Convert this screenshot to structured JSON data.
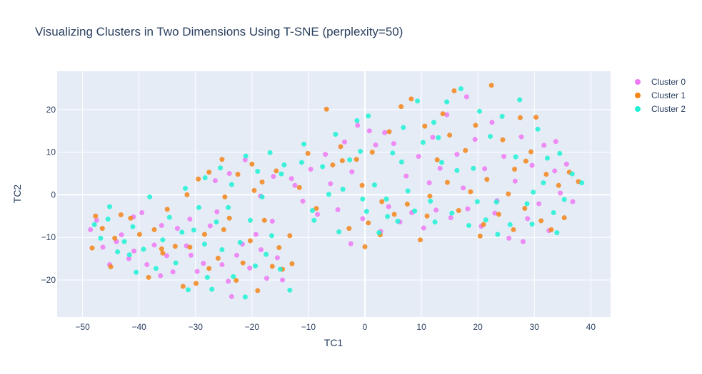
{
  "chart_data": {
    "type": "scatter",
    "title": "Visualizing Clusters in Two Dimensions Using T-SNE (perplexity=50)",
    "xlabel": "TC1",
    "ylabel": "TC2",
    "xlim": [
      -54.5,
      43.5
    ],
    "ylim": [
      -28.7,
      29.0
    ],
    "x_ticks": [
      -50,
      -40,
      -30,
      -20,
      -10,
      0,
      10,
      20,
      30,
      40
    ],
    "x_tick_labels": [
      "−50",
      "−40",
      "−30",
      "−20",
      "−10",
      "0",
      "10",
      "20",
      "30",
      "40"
    ],
    "y_ticks": [
      -20,
      -10,
      0,
      10,
      20
    ],
    "y_tick_labels": [
      "−20",
      "−10",
      "0",
      "10",
      "20"
    ],
    "grid": true,
    "legend_position": "top-right",
    "plot_background": "#e5ecf6",
    "series": [
      {
        "name": "Cluster 0",
        "color": "#ef79f2",
        "points": [
          [
            -48.6,
            -8.2
          ],
          [
            -47.5,
            -6.0
          ],
          [
            -46.4,
            -12.3
          ],
          [
            -45.2,
            -16.4
          ],
          [
            -44.0,
            -11.0
          ],
          [
            -43.1,
            -9.4
          ],
          [
            -41.8,
            -15.0
          ],
          [
            -40.9,
            -13.2
          ],
          [
            -39.5,
            -4.2
          ],
          [
            -38.6,
            -16.4
          ],
          [
            -37.3,
            -11.8
          ],
          [
            -36.0,
            -7.2
          ],
          [
            -35.1,
            -14.3
          ],
          [
            -34.0,
            -18.1
          ],
          [
            -33.2,
            -7.9
          ],
          [
            -31.6,
            -12.0
          ],
          [
            -30.8,
            -14.2
          ],
          [
            -29.7,
            -18.0
          ],
          [
            -28.6,
            -16.1
          ],
          [
            -27.4,
            -7.3
          ],
          [
            -26.2,
            -4.0
          ],
          [
            -25.3,
            -16.4
          ],
          [
            -24.2,
            -20.3
          ],
          [
            -23.6,
            -23.9
          ],
          [
            -22.7,
            -14.2
          ],
          [
            -21.7,
            -11.6
          ],
          [
            -20.4,
            -17.2
          ],
          [
            -19.3,
            -9.3
          ],
          [
            -18.4,
            -12.9
          ],
          [
            -17.4,
            -19.6
          ],
          [
            -16.4,
            -6.2
          ],
          [
            -15.5,
            -14.8
          ],
          [
            -14.6,
            -20.0
          ],
          [
            -26.5,
            3.3
          ],
          [
            -24.0,
            5.0
          ],
          [
            -21.2,
            8.2
          ],
          [
            -18.5,
            -0.3
          ],
          [
            -16.2,
            4.3
          ],
          [
            -12.4,
            2.2
          ],
          [
            -11.0,
            -1.5
          ],
          [
            -9.6,
            6.0
          ],
          [
            -8.4,
            -4.6
          ],
          [
            -7.0,
            9.5
          ],
          [
            -6.1,
            2.6
          ],
          [
            -4.8,
            -3.5
          ],
          [
            -3.6,
            12.4
          ],
          [
            -2.3,
            5.4
          ],
          [
            -1.3,
            16.3
          ],
          [
            -0.4,
            -5.6
          ],
          [
            0.8,
            15.0
          ],
          [
            1.9,
            11.7
          ],
          [
            2.8,
            -8.6
          ],
          [
            4.2,
            -2.8
          ],
          [
            5.1,
            12.0
          ],
          [
            6.2,
            -6.4
          ],
          [
            7.3,
            4.4
          ],
          [
            8.3,
            -4.2
          ],
          [
            9.5,
            9.0
          ],
          [
            10.4,
            -7.8
          ],
          [
            11.4,
            2.8
          ],
          [
            12.6,
            -3.6
          ],
          [
            13.3,
            6.2
          ],
          [
            14.5,
            18.8
          ],
          [
            15.2,
            -5.4
          ],
          [
            16.3,
            9.5
          ],
          [
            17.4,
            1.6
          ],
          [
            18.2,
            -3.3
          ],
          [
            19.5,
            13.0
          ],
          [
            20.6,
            -7.4
          ],
          [
            21.2,
            6.1
          ],
          [
            22.5,
            17.0
          ],
          [
            23.4,
            -1.4
          ],
          [
            24.6,
            9.0
          ],
          [
            25.5,
            -10.2
          ],
          [
            26.6,
            3.2
          ],
          [
            27.7,
            13.6
          ],
          [
            28.8,
            -5.6
          ],
          [
            29.6,
            6.9
          ],
          [
            30.8,
            -2.1
          ],
          [
            31.7,
            11.6
          ],
          [
            32.6,
            -8.4
          ],
          [
            33.6,
            5.6
          ],
          [
            34.6,
            0.4
          ],
          [
            35.7,
            7.2
          ],
          [
            36.8,
            -1.6
          ],
          [
            -2.5,
            -11.5
          ],
          [
            23.0,
            -4.3
          ],
          [
            28.0,
            -11.0
          ],
          [
            -36.2,
            -19.0
          ],
          [
            -41.0,
            -5.2
          ],
          [
            -31.0,
            -5.7
          ],
          [
            -13.0,
            3.8
          ],
          [
            3.5,
            14.6
          ],
          [
            12.0,
            13.5
          ],
          [
            18.0,
            23.0
          ],
          [
            33.8,
            12.5
          ]
        ]
      },
      {
        "name": "Cluster 1",
        "color": "#f58518",
        "points": [
          [
            -48.3,
            -12.5
          ],
          [
            -47.7,
            -5.0
          ],
          [
            -46.5,
            -7.9
          ],
          [
            -45.0,
            -16.9
          ],
          [
            -43.2,
            -4.7
          ],
          [
            -41.5,
            -5.5
          ],
          [
            -39.9,
            -9.3
          ],
          [
            -38.3,
            -19.4
          ],
          [
            -37.3,
            -8.2
          ],
          [
            -35.8,
            -13.7
          ],
          [
            -33.6,
            -12.1
          ],
          [
            -32.2,
            -21.5
          ],
          [
            -31.0,
            -12.3
          ],
          [
            -29.9,
            -20.8
          ],
          [
            -28.4,
            -9.3
          ],
          [
            -27.6,
            -17.3
          ],
          [
            -26.0,
            -14.9
          ],
          [
            -25.0,
            -8.2
          ],
          [
            -24.0,
            -5.5
          ],
          [
            -22.8,
            -20.1
          ],
          [
            -21.6,
            -16.0
          ],
          [
            -20.3,
            -10.8
          ],
          [
            -19.0,
            -22.5
          ],
          [
            -17.8,
            -6.0
          ],
          [
            -16.4,
            -16.8
          ],
          [
            -15.2,
            -12.4
          ],
          [
            -14.6,
            -17.5
          ],
          [
            -13.3,
            -9.6
          ],
          [
            -31.5,
            0.0
          ],
          [
            -29.5,
            3.7
          ],
          [
            -27.6,
            5.3
          ],
          [
            -25.3,
            8.3
          ],
          [
            -24.8,
            -0.5
          ],
          [
            -22.5,
            4.8
          ],
          [
            -20.0,
            7.2
          ],
          [
            -18.2,
            3.0
          ],
          [
            -15.7,
            5.6
          ],
          [
            -11.6,
            1.7
          ],
          [
            -10.1,
            9.7
          ],
          [
            -8.6,
            -3.2
          ],
          [
            -6.8,
            20.1
          ],
          [
            -5.7,
            7.0
          ],
          [
            -4.3,
            11.3
          ],
          [
            -2.8,
            -7.9
          ],
          [
            -1.5,
            8.3
          ],
          [
            -0.5,
            2.2
          ],
          [
            0.6,
            -6.6
          ],
          [
            1.3,
            10.0
          ],
          [
            2.7,
            -9.4
          ],
          [
            4.3,
            14.8
          ],
          [
            5.2,
            -4.6
          ],
          [
            6.4,
            20.7
          ],
          [
            7.5,
            -2.2
          ],
          [
            8.2,
            22.5
          ],
          [
            9.8,
            -10.6
          ],
          [
            10.6,
            16.1
          ],
          [
            11.5,
            -0.3
          ],
          [
            12.8,
            8.2
          ],
          [
            13.8,
            19.0
          ],
          [
            14.6,
            2.9
          ],
          [
            15.8,
            24.4
          ],
          [
            16.6,
            -3.7
          ],
          [
            17.8,
            10.4
          ],
          [
            18.7,
            0.7
          ],
          [
            19.6,
            16.3
          ],
          [
            20.4,
            -9.7
          ],
          [
            21.6,
            3.6
          ],
          [
            22.4,
            25.7
          ],
          [
            23.7,
            -4.6
          ],
          [
            24.4,
            12.9
          ],
          [
            25.4,
            0.2
          ],
          [
            26.3,
            -8.2
          ],
          [
            27.5,
            18.1
          ],
          [
            28.3,
            -3.2
          ],
          [
            29.4,
            10.1
          ],
          [
            30.3,
            18.2
          ],
          [
            31.2,
            -6.1
          ],
          [
            32.1,
            4.8
          ],
          [
            33.0,
            -8.2
          ],
          [
            34.3,
            2.2
          ],
          [
            35.3,
            -5.4
          ],
          [
            36.2,
            5.3
          ],
          [
            37.8,
            3.1
          ],
          [
            -35.0,
            -3.4
          ],
          [
            -19.6,
            1.0
          ],
          [
            3.0,
            -1.6
          ],
          [
            21.0,
            -7.0
          ],
          [
            26.5,
            6.0
          ],
          [
            -44.3,
            -10.2
          ],
          [
            -12.9,
            -16.2
          ],
          [
            0.0,
            -12.2
          ],
          [
            11.0,
            -5.0
          ],
          [
            28.5,
            7.9
          ],
          [
            -36.0,
            -12.7
          ],
          [
            -4.0,
            8.0
          ],
          [
            15.0,
            14.0
          ]
        ]
      },
      {
        "name": "Cluster 2",
        "color": "#1ff2d3",
        "points": [
          [
            -47.9,
            -7.0
          ],
          [
            -46.8,
            -10.2
          ],
          [
            -45.2,
            -2.8
          ],
          [
            -43.8,
            -13.4
          ],
          [
            -42.6,
            -11.0
          ],
          [
            -41.1,
            -7.5
          ],
          [
            -40.5,
            -18.2
          ],
          [
            -39.2,
            -12.8
          ],
          [
            -38.1,
            -0.5
          ],
          [
            -37.0,
            -17.3
          ],
          [
            -35.8,
            -10.6
          ],
          [
            -34.6,
            -5.3
          ],
          [
            -33.5,
            -16.0
          ],
          [
            -32.4,
            -8.8
          ],
          [
            -31.3,
            -22.3
          ],
          [
            -30.3,
            -8.3
          ],
          [
            -29.4,
            -3.0
          ],
          [
            -28.4,
            -11.6
          ],
          [
            -27.1,
            -22.2
          ],
          [
            -26.3,
            -6.4
          ],
          [
            -25.3,
            -12.9
          ],
          [
            -24.2,
            -3.0
          ],
          [
            -23.3,
            -19.2
          ],
          [
            -22.1,
            -11.2
          ],
          [
            -21.2,
            -24.0
          ],
          [
            -20.3,
            -6.0
          ],
          [
            -19.4,
            -16.7
          ],
          [
            -18.2,
            -0.5
          ],
          [
            -17.5,
            -14.0
          ],
          [
            -16.5,
            -9.6
          ],
          [
            -15.0,
            -17.5
          ],
          [
            -13.3,
            -22.4
          ],
          [
            -31.8,
            1.5
          ],
          [
            -28.3,
            4.0
          ],
          [
            -25.6,
            6.3
          ],
          [
            -23.6,
            2.4
          ],
          [
            -21.1,
            9.1
          ],
          [
            -19.0,
            5.5
          ],
          [
            -16.8,
            9.9
          ],
          [
            -14.3,
            7.0
          ],
          [
            -10.8,
            11.9
          ],
          [
            -9.3,
            -3.7
          ],
          [
            -7.5,
            6.6
          ],
          [
            -6.4,
            0.1
          ],
          [
            -5.2,
            14.2
          ],
          [
            -3.9,
            1.3
          ],
          [
            -2.7,
            8.2
          ],
          [
            -1.4,
            17.4
          ],
          [
            -0.4,
            -1.0
          ],
          [
            0.6,
            18.5
          ],
          [
            1.7,
            2.3
          ],
          [
            2.5,
            -8.9
          ],
          [
            3.8,
            -1.0
          ],
          [
            4.9,
            9.8
          ],
          [
            5.8,
            -6.2
          ],
          [
            6.8,
            15.8
          ],
          [
            7.6,
            0.9
          ],
          [
            8.8,
            -3.8
          ],
          [
            9.3,
            22.0
          ],
          [
            10.3,
            12.3
          ],
          [
            11.6,
            -1.5
          ],
          [
            12.4,
            -6.4
          ],
          [
            13.6,
            7.6
          ],
          [
            14.5,
            21.8
          ],
          [
            15.4,
            -4.3
          ],
          [
            16.3,
            5.7
          ],
          [
            17.0,
            24.9
          ],
          [
            18.4,
            -7.2
          ],
          [
            19.2,
            6.2
          ],
          [
            20.3,
            19.6
          ],
          [
            21.4,
            -5.9
          ],
          [
            22.2,
            13.7
          ],
          [
            23.3,
            -1.7
          ],
          [
            24.3,
            18.4
          ],
          [
            25.7,
            -7.0
          ],
          [
            26.7,
            8.9
          ],
          [
            27.4,
            22.3
          ],
          [
            28.7,
            -2.1
          ],
          [
            29.6,
            -6.9
          ],
          [
            30.6,
            15.4
          ],
          [
            31.6,
            2.8
          ],
          [
            32.3,
            8.6
          ],
          [
            33.4,
            -4.2
          ],
          [
            34.5,
            9.7
          ],
          [
            35.3,
            -1.1
          ],
          [
            36.7,
            4.9
          ],
          [
            38.4,
            2.8
          ],
          [
            -9.0,
            -6.0
          ],
          [
            0.3,
            -3.9
          ],
          [
            4.0,
            -5.1
          ],
          [
            23.5,
            -9.3
          ],
          [
            -45.5,
            -5.7
          ],
          [
            -41.7,
            -14.1
          ],
          [
            -27.9,
            -19.4
          ],
          [
            -11.2,
            7.6
          ],
          [
            -4.6,
            -8.7
          ],
          [
            13.0,
            13.4
          ],
          [
            19.9,
            -1.6
          ],
          [
            29.8,
            0.6
          ],
          [
            34.0,
            -8.9
          ],
          [
            12.2,
            17.0
          ],
          [
            -0.8,
            10.2
          ],
          [
            6.5,
            7.7
          ],
          [
            -14.8,
            4.9
          ]
        ]
      }
    ]
  }
}
